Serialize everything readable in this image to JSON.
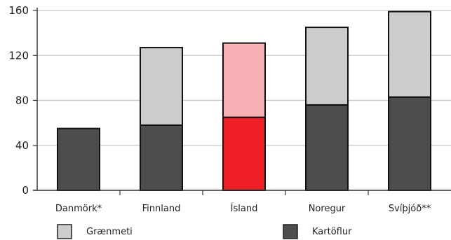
{
  "chart_data": {
    "type": "bar",
    "stacked": true,
    "title": "",
    "subtitle": "",
    "xlabel": "",
    "ylabel": "",
    "categories": [
      "Danmörk*",
      "Finnland",
      "Ísland",
      "Noregur",
      "Svíþjóð**"
    ],
    "series": [
      {
        "name": "Kartöflur",
        "values": [
          55,
          58,
          65,
          76,
          83
        ],
        "color": "#4d4d4d"
      },
      {
        "name": "Grænmeti",
        "values": [
          0,
          69,
          66,
          69,
          76
        ],
        "color": "#cccccc"
      }
    ],
    "highlight": {
      "category": "Ísland",
      "colors": {
        "Kartöflur": "#ee2026",
        "Grænmeti": "#f7b0b3"
      }
    },
    "ylim": [
      0,
      160
    ],
    "yticks": [
      0,
      40,
      80,
      120,
      160
    ],
    "grid": true,
    "legend": [
      {
        "label": "Grænmeti",
        "color": "#cccccc"
      },
      {
        "label": "Kartöflur",
        "color": "#4d4d4d"
      }
    ],
    "legend_position": "bottom"
  }
}
